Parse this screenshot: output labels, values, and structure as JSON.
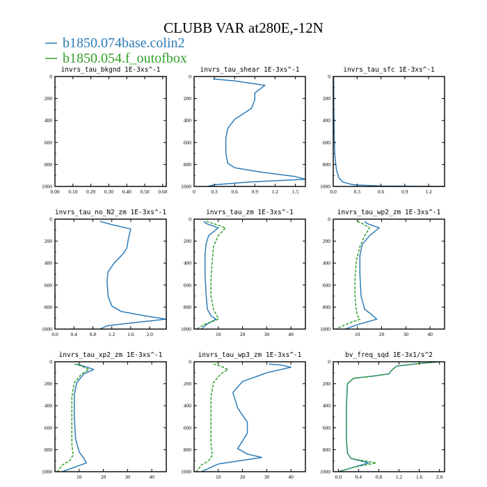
{
  "figure": {
    "title": "CLUBB VAR at280E,-12N",
    "legend": [
      {
        "label": "b1850.074base.colin2",
        "color": "#2c7bb6",
        "dash": "none"
      },
      {
        "label": "b1850.054.f_outofbox",
        "color": "#33a02c",
        "dash": "4,2"
      }
    ]
  },
  "chart_data": [
    {
      "type": "line",
      "title": "invrs_tau_bkgnd 1E-3xs^-1",
      "xlim": [
        0,
        0.62
      ],
      "ylim": [
        0,
        1000
      ],
      "y_inverted": true,
      "xticks": [
        0,
        0.1,
        0.2,
        0.3,
        0.4,
        0.5,
        0.6
      ],
      "xtick_labels": [
        "0.00",
        "0.10",
        "0.20",
        "0.30",
        "0.40",
        "0.50",
        "0.60"
      ],
      "yticks": [
        0,
        200,
        400,
        600,
        800,
        1000
      ],
      "series": []
    },
    {
      "type": "line",
      "title": "invrs_tau_shear 1E-3xs^-1",
      "xlim": [
        0,
        1.65
      ],
      "ylim": [
        0,
        1000
      ],
      "y_inverted": true,
      "xticks": [
        0,
        0.3,
        0.6,
        0.9,
        1.2,
        1.5
      ],
      "xtick_labels": [
        "0",
        "0.3",
        "0.6",
        "0.9",
        "1.2",
        "1.5"
      ],
      "yticks": [
        0,
        200,
        400,
        600,
        800,
        1000
      ],
      "series": [
        {
          "color": "#2c7bb6",
          "x": [
            0.28,
            0.6,
            1.05,
            0.9,
            0.9,
            0.85,
            0.6,
            0.5,
            0.47,
            0.47,
            0.5,
            0.6,
            1.0,
            1.5,
            1.65,
            0.8,
            0.3,
            0.2
          ],
          "y": [
            22,
            40,
            80,
            150,
            210,
            290,
            390,
            470,
            560,
            700,
            790,
            830,
            870,
            910,
            935,
            960,
            985,
            1000
          ]
        }
      ]
    },
    {
      "type": "line",
      "title": "invrs_tau_sfc 1E-3xs^-1",
      "xlim": [
        0,
        1.4
      ],
      "ylim": [
        0,
        1000
      ],
      "y_inverted": true,
      "xticks": [
        0,
        0.3,
        0.6,
        0.9,
        1.2
      ],
      "xtick_labels": [
        "0.0",
        "0.3",
        "0.6",
        "0.9",
        "1.2"
      ],
      "yticks": [
        0,
        200,
        400,
        600,
        800,
        1000
      ],
      "series": [
        {
          "color": "#2c7bb6",
          "x": [
            0.005,
            0.008,
            0.012,
            0.02,
            0.04,
            0.07,
            0.12,
            0.25,
            0.6,
            1.4
          ],
          "y": [
            0,
            300,
            550,
            720,
            850,
            920,
            960,
            985,
            996,
            1000
          ]
        }
      ]
    },
    {
      "type": "line",
      "title": "invrs_tau_no_N2_zm 1E-3xs^-1",
      "xlim": [
        0,
        2.35
      ],
      "ylim": [
        0,
        1000
      ],
      "y_inverted": true,
      "xticks": [
        0,
        0.4,
        0.8,
        1.2,
        1.6,
        2.0
      ],
      "xtick_labels": [
        "0.0",
        "0.4",
        "0.8",
        "1.2",
        "1.6",
        "2.0"
      ],
      "yticks": [
        0,
        200,
        400,
        600,
        800,
        1000
      ],
      "series": [
        {
          "color": "#2c7bb6",
          "x": [
            0.95,
            1.2,
            1.6,
            1.55,
            1.52,
            1.45,
            1.25,
            1.12,
            1.1,
            1.12,
            1.2,
            1.4,
            1.9,
            2.35,
            1.6,
            1.1,
            0.95
          ],
          "y": [
            20,
            50,
            90,
            180,
            260,
            310,
            400,
            480,
            560,
            700,
            790,
            840,
            880,
            910,
            945,
            970,
            1000
          ]
        }
      ]
    },
    {
      "type": "line",
      "title": "invrs_tau_zm 1E-3xs^-1",
      "xlim": [
        0,
        46
      ],
      "ylim": [
        0,
        1000
      ],
      "y_inverted": true,
      "xticks": [
        10,
        20,
        30,
        40
      ],
      "xtick_labels": [
        "10",
        "20",
        "30",
        "40"
      ],
      "yticks": [
        0,
        200,
        400,
        600,
        800,
        1000
      ],
      "series": [
        {
          "color": "#2c7bb6",
          "x": [
            4,
            5,
            10,
            6,
            5,
            4.5,
            4.5,
            5,
            5.5,
            7,
            9,
            5,
            3
          ],
          "y": [
            20,
            40,
            80,
            150,
            220,
            320,
            500,
            700,
            820,
            880,
            910,
            960,
            1000
          ]
        },
        {
          "color": "#33a02c",
          "dash": "4,2",
          "x": [
            5,
            8,
            13,
            10,
            8,
            7.5,
            7,
            7,
            8,
            9.5,
            10,
            4,
            1
          ],
          "y": [
            20,
            40,
            80,
            150,
            250,
            380,
            550,
            700,
            820,
            880,
            910,
            960,
            1000
          ]
        }
      ]
    },
    {
      "type": "line",
      "title": "invrs_tau_wp2_zm 1E-3xs^-1",
      "xlim": [
        0,
        46
      ],
      "ylim": [
        0,
        1000
      ],
      "y_inverted": true,
      "xticks": [
        10,
        20,
        30,
        40
      ],
      "xtick_labels": [
        "10",
        "20",
        "30",
        "40"
      ],
      "yticks": [
        0,
        200,
        400,
        600,
        800,
        1000
      ],
      "series": [
        {
          "color": "#2c7bb6",
          "x": [
            13,
            14,
            19,
            15,
            12,
            11,
            11,
            11.5,
            13,
            16,
            18,
            10,
            5
          ],
          "y": [
            20,
            40,
            80,
            150,
            230,
            330,
            500,
            700,
            820,
            870,
            910,
            960,
            1000
          ]
        },
        {
          "color": "#33a02c",
          "dash": "4,2",
          "x": [
            10,
            12,
            15,
            13,
            11,
            9.5,
            9,
            9,
            9.5,
            10,
            11,
            5,
            1
          ],
          "y": [
            20,
            40,
            80,
            150,
            250,
            380,
            550,
            700,
            820,
            880,
            910,
            960,
            1000
          ]
        }
      ]
    },
    {
      "type": "line",
      "title": "invrs_tau_xp2_zm 1E-3xs^-1",
      "xlim": [
        0,
        46
      ],
      "ylim": [
        0,
        1000
      ],
      "y_inverted": true,
      "xticks": [
        10,
        20,
        30,
        40
      ],
      "xtick_labels": [
        "10",
        "20",
        "30",
        "40"
      ],
      "yticks": [
        0,
        200,
        400,
        600,
        800,
        1000
      ],
      "series": [
        {
          "color": "#2c7bb6",
          "x": [
            9,
            12,
            16,
            12,
            9,
            8,
            8,
            8.5,
            10,
            12,
            13,
            8,
            3
          ],
          "y": [
            20,
            40,
            70,
            110,
            190,
            300,
            500,
            700,
            820,
            880,
            920,
            960,
            1000
          ]
        },
        {
          "color": "#33a02c",
          "dash": "4,2",
          "x": [
            8,
            11,
            14,
            11,
            8,
            7,
            7,
            7,
            7.5,
            6,
            3,
            1
          ],
          "y": [
            20,
            40,
            70,
            110,
            190,
            320,
            550,
            750,
            850,
            900,
            940,
            1000
          ]
        }
      ]
    },
    {
      "type": "line",
      "title": "invrs_tau_wp3_zm 1E-3xs^-1",
      "xlim": [
        0,
        46
      ],
      "ylim": [
        0,
        1000
      ],
      "y_inverted": true,
      "xticks": [
        10,
        20,
        30,
        40
      ],
      "xtick_labels": [
        "10",
        "20",
        "30",
        "40"
      ],
      "yticks": [
        0,
        200,
        400,
        600,
        800,
        1000
      ],
      "series": [
        {
          "color": "#2c7bb6",
          "x": [
            31,
            36,
            40,
            30,
            20,
            16,
            18,
            22,
            22,
            20,
            18,
            22,
            28,
            10,
            3
          ],
          "y": [
            20,
            30,
            50,
            100,
            180,
            280,
            420,
            550,
            650,
            720,
            790,
            840,
            870,
            930,
            1000
          ]
        },
        {
          "color": "#33a02c",
          "dash": "4,2",
          "x": [
            8,
            11,
            14,
            11,
            8,
            7,
            7,
            7,
            7.5,
            6,
            3,
            1
          ],
          "y": [
            20,
            40,
            70,
            110,
            190,
            320,
            550,
            750,
            850,
            900,
            940,
            1000
          ]
        }
      ]
    },
    {
      "type": "line",
      "title": "bv_freq_sqd 1E-3x1/s^2",
      "xlim": [
        -0.1,
        2.1
      ],
      "ylim": [
        0,
        1000
      ],
      "y_inverted": true,
      "xticks": [
        0,
        0.4,
        0.8,
        1.2,
        1.6,
        2.0
      ],
      "xtick_labels": [
        "0.0",
        "0.4",
        "0.8",
        "1.2",
        "1.6",
        "2.0"
      ],
      "yticks": [
        0,
        200,
        400,
        600,
        800,
        1000
      ],
      "series": [
        {
          "color": "#2c7bb6",
          "x": [
            2.0,
            1.5,
            1.15,
            1.05,
            1.0,
            0.7,
            0.3,
            0.18,
            0.16,
            0.16,
            0.18,
            0.25,
            0.6,
            0.3,
            0.0
          ],
          "y": [
            0,
            20,
            40,
            80,
            110,
            130,
            150,
            200,
            400,
            700,
            830,
            880,
            920,
            960,
            1000
          ]
        },
        {
          "color": "#33a02c",
          "dash": "4,2",
          "x": [
            2.0,
            1.5,
            1.15,
            1.05,
            1.0,
            0.7,
            0.3,
            0.18,
            0.16,
            0.16,
            0.18,
            0.25,
            0.75,
            0.3,
            0.0
          ],
          "y": [
            0,
            20,
            40,
            80,
            110,
            130,
            150,
            200,
            400,
            700,
            830,
            880,
            920,
            960,
            1000
          ]
        }
      ]
    }
  ]
}
